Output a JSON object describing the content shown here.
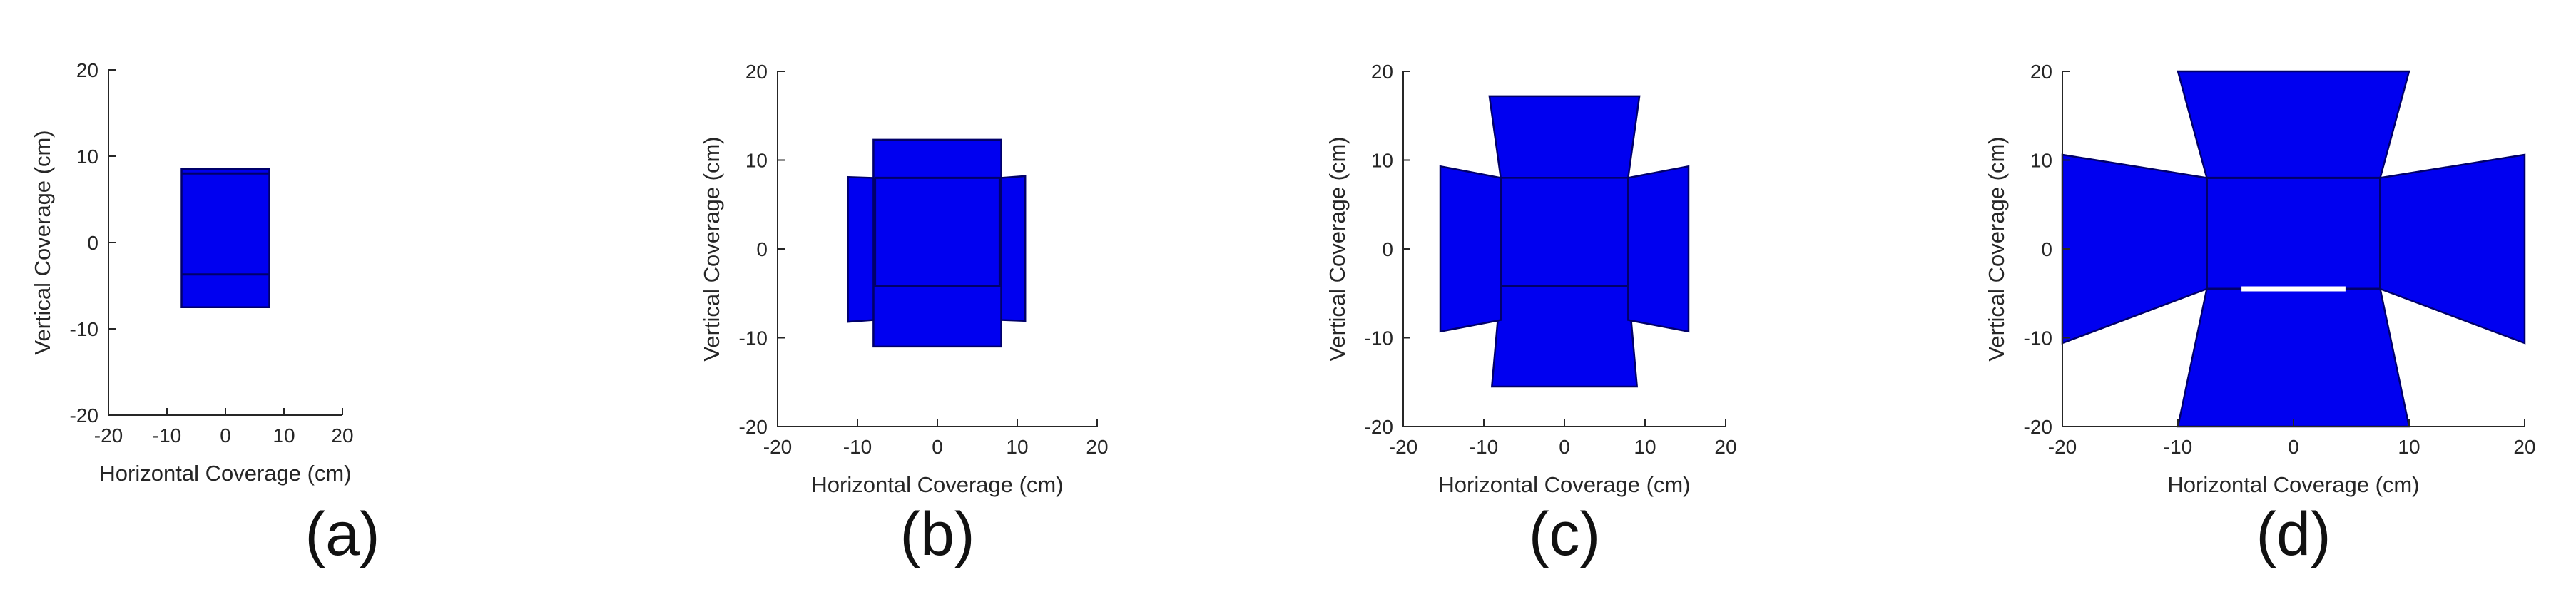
{
  "colors": {
    "fill": "#0000f0",
    "edge": "#00006a",
    "axis": "#262626",
    "gap": "#ffffff"
  },
  "chart_data": [
    {
      "type": "area",
      "caption": "(a)",
      "xlabel": "Horizontal Coverage (cm)",
      "ylabel": "Vertical Coverage (cm)",
      "xlim": [
        -20,
        20
      ],
      "ylim": [
        -20,
        20
      ],
      "xticks": [
        "-20",
        "-10",
        "0",
        "10",
        "20"
      ],
      "yticks": [
        "20",
        "10",
        "0",
        "-10",
        "-20"
      ],
      "grid": false,
      "regions": [
        {
          "name": "",
          "polygon": [
            [
              -7.5,
              8.5
            ],
            [
              7.5,
              8.5
            ],
            [
              7.5,
              -7.5
            ],
            [
              -7.5,
              -7.5
            ]
          ]
        }
      ],
      "lines": [
        {
          "points": [
            [
              -7.5,
              -3.7
            ],
            [
              7.5,
              -3.7
            ]
          ]
        },
        {
          "points": [
            [
              -7.5,
              8
            ],
            [
              7.5,
              8
            ]
          ]
        }
      ]
    },
    {
      "type": "area",
      "caption": "(b)",
      "xlabel": "Horizontal Coverage (cm)",
      "ylabel": "Vertical Coverage (cm)",
      "xlim": [
        -20,
        20
      ],
      "ylim": [
        -20,
        20
      ],
      "xticks": [
        "-20",
        "-10",
        "0",
        "10",
        "20"
      ],
      "yticks": [
        "20",
        "10",
        "0",
        "-10",
        "-20"
      ],
      "grid": false,
      "regions": [
        {
          "name": "",
          "polygon": [
            [
              -8,
              12.3
            ],
            [
              8,
              12.3
            ],
            [
              8,
              -11
            ],
            [
              -8,
              -11
            ]
          ]
        },
        {
          "name": "",
          "polygon": [
            [
              -11.2,
              8.1
            ],
            [
              -8,
              8
            ],
            [
              -8,
              -8
            ],
            [
              -11.2,
              -8.2
            ]
          ]
        },
        {
          "name": "",
          "polygon": [
            [
              8,
              8
            ],
            [
              11,
              8.2
            ],
            [
              11,
              -8.1
            ],
            [
              8,
              -8
            ]
          ]
        }
      ],
      "lines": [
        {
          "points": [
            [
              -7.8,
              8
            ],
            [
              7.8,
              8
            ],
            [
              7.8,
              -4.2
            ],
            [
              -7.8,
              -4.2
            ],
            [
              -7.8,
              8
            ]
          ]
        }
      ]
    },
    {
      "type": "area",
      "caption": "(c)",
      "xlabel": "Horizontal Coverage (cm)",
      "ylabel": "Vertical Coverage (cm)",
      "xlim": [
        -20,
        20
      ],
      "ylim": [
        -20,
        20
      ],
      "xticks": [
        "-20",
        "-10",
        "0",
        "10",
        "20"
      ],
      "yticks": [
        "20",
        "10",
        "0",
        "-10",
        "-20"
      ],
      "grid": false,
      "regions": [
        {
          "name": "",
          "polygon": [
            [
              -9.3,
              17.2
            ],
            [
              9.3,
              17.2
            ],
            [
              7.9,
              8
            ],
            [
              -7.9,
              8
            ]
          ]
        },
        {
          "name": "",
          "polygon": [
            [
              -7.9,
              8
            ],
            [
              7.9,
              8
            ],
            [
              7.9,
              -4.2
            ],
            [
              -7.9,
              -4.2
            ]
          ]
        },
        {
          "name": "",
          "polygon": [
            [
              -7.9,
              -4.2
            ],
            [
              7.9,
              -4.2
            ],
            [
              9,
              -15.5
            ],
            [
              -9,
              -15.5
            ]
          ]
        },
        {
          "name": "",
          "polygon": [
            [
              -15.4,
              9.3
            ],
            [
              -7.9,
              8
            ],
            [
              -7.9,
              -8
            ],
            [
              -15.4,
              -9.3
            ]
          ]
        },
        {
          "name": "",
          "polygon": [
            [
              7.9,
              8
            ],
            [
              15.4,
              9.3
            ],
            [
              15.4,
              -9.3
            ],
            [
              7.9,
              -8
            ]
          ]
        }
      ],
      "lines": []
    },
    {
      "type": "area",
      "caption": "(d)",
      "xlabel": "Horizontal Coverage (cm)",
      "ylabel": "Vertical Coverage (cm)",
      "xlim": [
        -20,
        20
      ],
      "ylim": [
        -20,
        20
      ],
      "xticks": [
        "-20",
        "-10",
        "0",
        "10",
        "20"
      ],
      "yticks": [
        "20",
        "10",
        "0",
        "-10",
        "-20"
      ],
      "grid": false,
      "regions": [
        {
          "name": "",
          "polygon": [
            [
              -10,
              20
            ],
            [
              10,
              20
            ],
            [
              7.5,
              8
            ],
            [
              -7.5,
              8
            ]
          ]
        },
        {
          "name": "",
          "polygon": [
            [
              -7.5,
              8
            ],
            [
              7.5,
              8
            ],
            [
              7.5,
              -4.5
            ],
            [
              -7.5,
              -4.5
            ]
          ]
        },
        {
          "name": "",
          "polygon": [
            [
              -7.5,
              -4.5
            ],
            [
              7.5,
              -4.5
            ],
            [
              10,
              -20
            ],
            [
              -10,
              -20
            ]
          ]
        },
        {
          "name": "",
          "polygon": [
            [
              -20,
              10.6
            ],
            [
              -7.5,
              8
            ],
            [
              -7.5,
              -4.5
            ],
            [
              -20,
              -10.6
            ]
          ]
        },
        {
          "name": "",
          "polygon": [
            [
              7.5,
              8
            ],
            [
              20,
              10.6
            ],
            [
              20,
              -10.6
            ],
            [
              7.5,
              -4.5
            ]
          ]
        }
      ],
      "lines": [
        {
          "points": [
            [
              -7.5,
              8
            ],
            [
              7.5,
              8
            ],
            [
              7.5,
              -4.5
            ],
            [
              -7.5,
              -4.5
            ],
            [
              -7.5,
              8
            ]
          ]
        }
      ],
      "gaps": [
        {
          "points": [
            [
              -4.5,
              -4.5
            ],
            [
              4.5,
              -4.5
            ]
          ]
        }
      ]
    }
  ]
}
